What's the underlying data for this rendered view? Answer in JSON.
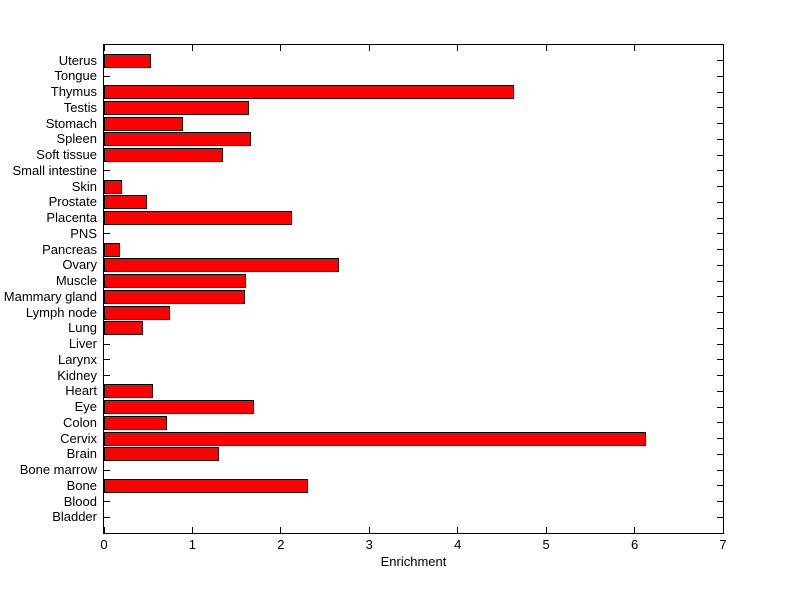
{
  "figure": {
    "background": "#ffffff",
    "axis_color": "#000000"
  },
  "chart_data": {
    "type": "bar",
    "orientation": "horizontal",
    "xlabel": "Enrichment",
    "xlim": [
      0,
      7
    ],
    "x_ticks": [
      0,
      1,
      2,
      3,
      4,
      5,
      6,
      7
    ],
    "grid": false,
    "bar_color": "#ff0000",
    "bar_edge_color": "#000000",
    "categories": [
      "Uterus",
      "Tongue",
      "Thymus",
      "Testis",
      "Stomach",
      "Spleen",
      "Soft tissue",
      "Small intestine",
      "Skin",
      "Prostate",
      "Placenta",
      "PNS",
      "Pancreas",
      "Ovary",
      "Muscle",
      "Mammary gland",
      "Lymph node",
      "Lung",
      "Liver",
      "Larynx",
      "Kidney",
      "Heart",
      "Eye",
      "Colon",
      "Cervix",
      "Brain",
      "Bone marrow",
      "Bone",
      "Blood",
      "Bladder"
    ],
    "values": [
      0.52,
      0,
      4.62,
      1.63,
      0.88,
      1.65,
      1.34,
      0,
      0.19,
      0.47,
      2.12,
      0,
      0.17,
      2.65,
      1.6,
      1.58,
      0.73,
      0.43,
      0,
      0,
      0,
      0.54,
      1.69,
      0.7,
      6.12,
      1.29,
      0,
      2.3,
      0,
      0
    ]
  }
}
